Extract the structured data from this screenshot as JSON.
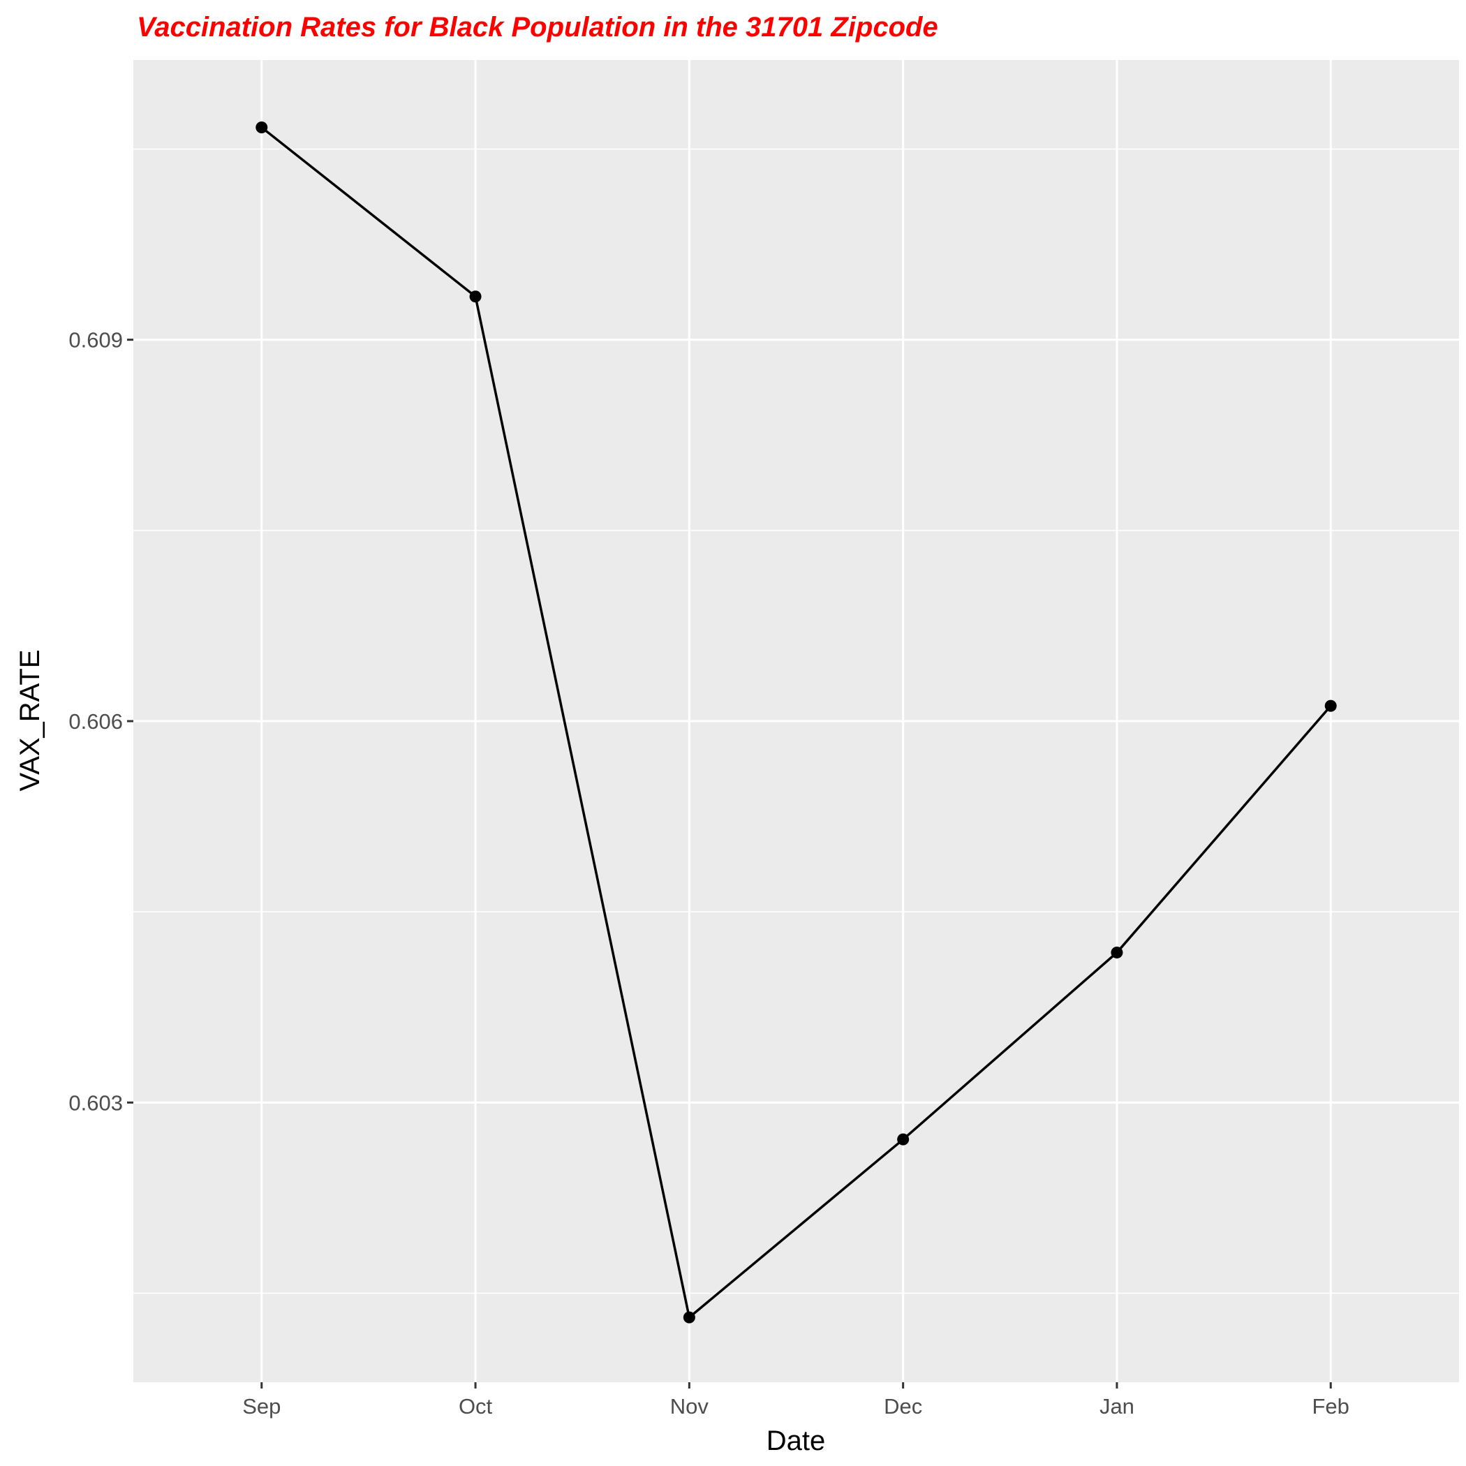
{
  "chart_data": {
    "type": "line",
    "title": "Vaccination Rates for Black Population in the 31701 Zipcode",
    "xlabel": "Date",
    "ylabel": "VAX_RATE",
    "categories": [
      "Sep",
      "Oct",
      "Nov",
      "Dec",
      "Jan",
      "Feb"
    ],
    "values": [
      0.61067,
      0.60934,
      0.60131,
      0.60271,
      0.60418,
      0.60612
    ],
    "ylim": [
      0.6008,
      0.6112
    ],
    "yticks": [
      0.603,
      0.606,
      0.609
    ],
    "ytick_labels": [
      "0.603",
      "0.606",
      "0.609"
    ],
    "grid": true,
    "colors": {
      "title": "#ff0000",
      "line": "#000000",
      "panel": "#ebebeb",
      "grid": "#ffffff"
    }
  }
}
